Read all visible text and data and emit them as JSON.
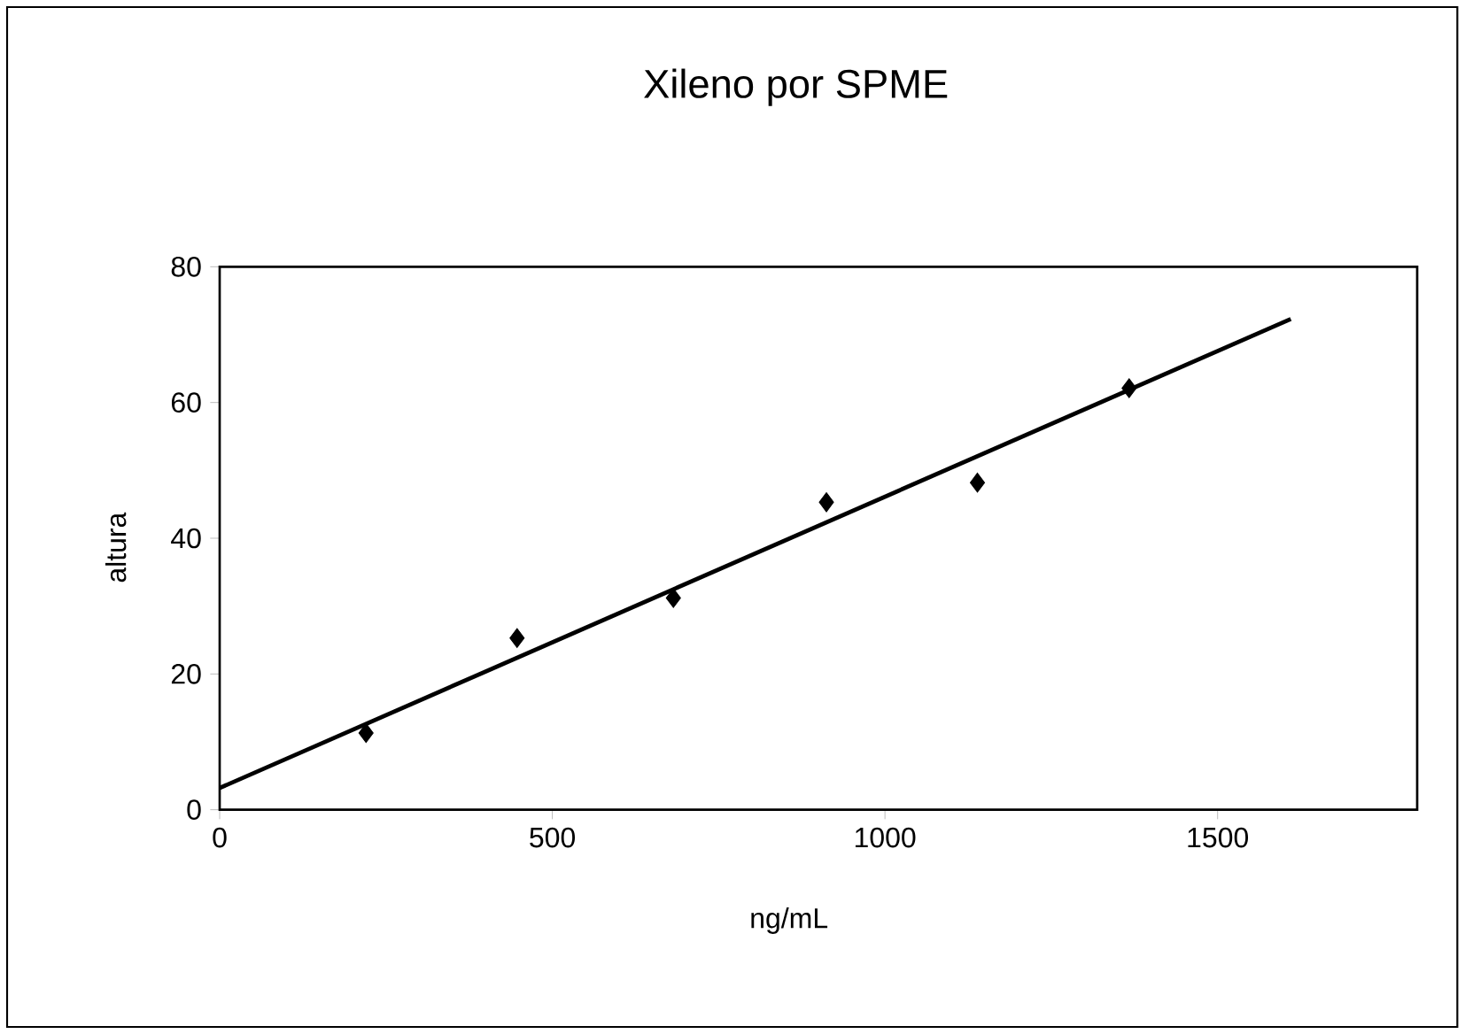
{
  "chart_data": {
    "type": "scatter",
    "title": "Xileno por SPME",
    "xlabel": "ng/mL",
    "ylabel": "altura",
    "series": [
      {
        "color": "#000000",
        "marker": "diamond",
        "x": [
          220,
          447,
          682,
          912,
          1139,
          1367
        ],
        "values": [
          11.3,
          25.3,
          31.2,
          45.3,
          48.2,
          62.1
        ]
      },
      {
        "type": "line",
        "color": "#000000",
        "marker": "none",
        "line_style": "solid",
        "x": [
          0,
          1610
        ],
        "values": [
          3.2,
          72.3
        ]
      }
    ],
    "xlim": [
      0,
      1800
    ],
    "xticks": [
      0,
      500,
      1000,
      1500
    ],
    "ylim": [
      0,
      80
    ],
    "yticks": [
      0,
      20,
      40,
      60,
      80
    ],
    "grid": false
  }
}
